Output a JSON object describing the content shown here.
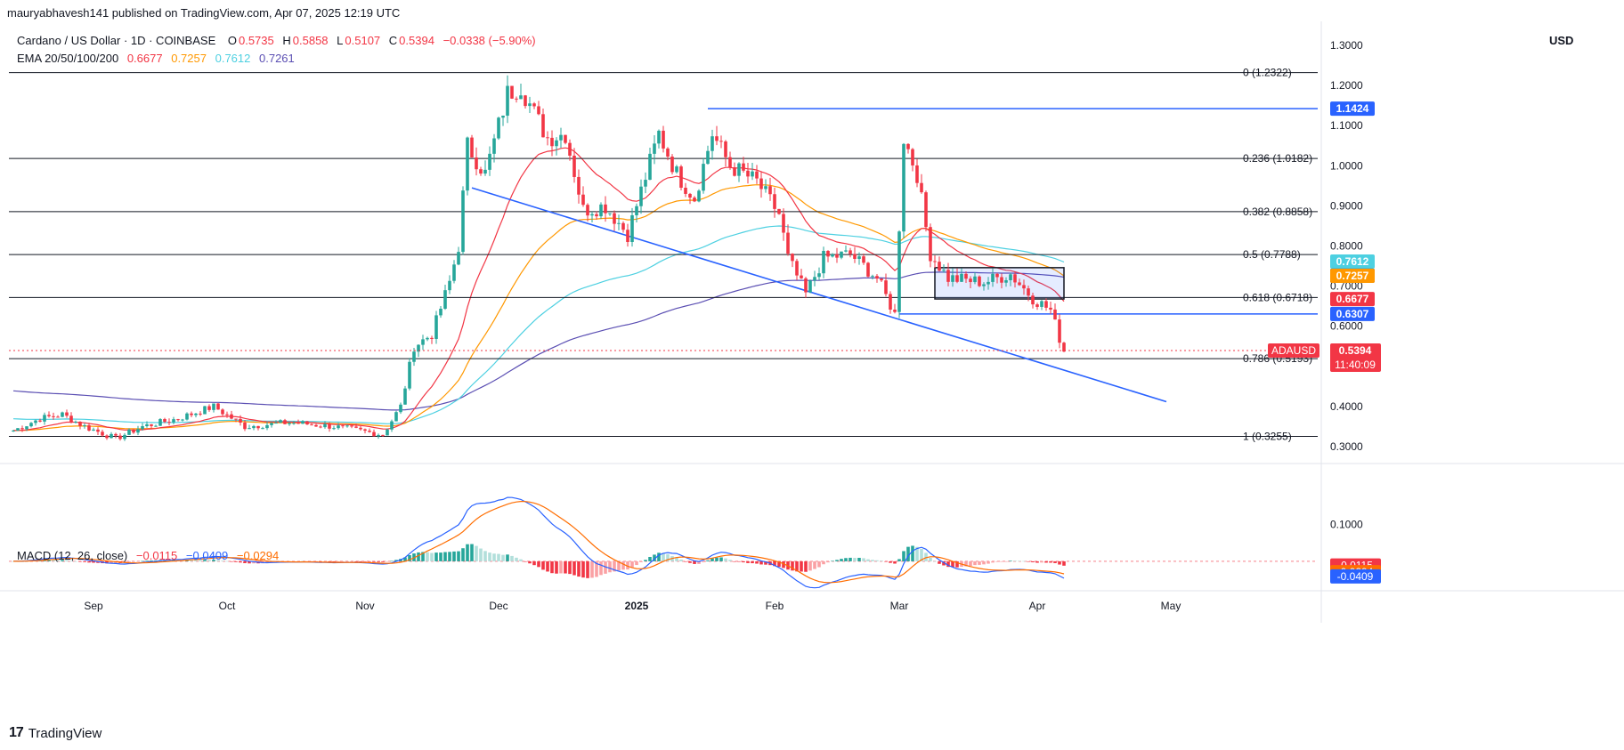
{
  "header": {
    "published": "mauryabhavesh141 published on TradingView.com, Apr 07, 2025 12:19 UTC",
    "symbol": "Cardano / US Dollar · 1D · COINBASE",
    "o_label": "O",
    "o_value": "0.5735",
    "h_label": "H",
    "h_value": "0.5858",
    "l_label": "L",
    "l_value": "0.5107",
    "c_label": "C",
    "c_value": "0.5394",
    "change": "−0.0338 (−5.90%)",
    "ema_label": "EMA 20/50/100/200",
    "ema_values": [
      "0.6677",
      "0.7257",
      "0.7612",
      "0.7261"
    ],
    "macd_label": "MACD (12, 26, close)",
    "macd_values": [
      "−0.0115",
      "−0.0409",
      "−0.0294"
    ],
    "currency": "USD",
    "brand": "TradingView"
  },
  "colors": {
    "up": "#26a69a",
    "down": "#f23645",
    "ema20": "#f23645",
    "ema50": "#ff9800",
    "ema100": "#4dd0e1",
    "ema200": "#5b4fb3",
    "trendline": "#2962ff",
    "fib": "#131722",
    "macd_line": "#2962ff",
    "signal_line": "#ff6d00"
  },
  "chart_data": {
    "type": "candlestick",
    "title": "Cardano / US Dollar · 1D · COINBASE",
    "ylim": [
      0.26,
      1.36
    ],
    "y_ticks": [
      "1.3000",
      "1.2000",
      "1.1000",
      "1.0000",
      "0.9000",
      "0.8000",
      "0.7000",
      "0.6000",
      "0.4000",
      "0.3000"
    ],
    "x_ticks": [
      "Sep",
      "Oct",
      "Nov",
      "Dec",
      "2025",
      "Feb",
      "Mar",
      "Apr",
      "May"
    ],
    "fib_levels": [
      {
        "ratio": "0",
        "price": 1.2322,
        "label": "0 (1.2322)"
      },
      {
        "ratio": "0.236",
        "price": 1.0182,
        "label": "0.236 (1.0182)"
      },
      {
        "ratio": "0.382",
        "price": 0.8858,
        "label": "0.382 (0.8858)"
      },
      {
        "ratio": "0.5",
        "price": 0.7788,
        "label": "0.5 (0.7788)"
      },
      {
        "ratio": "0.618",
        "price": 0.6718,
        "label": "0.618 (0.6718)"
      },
      {
        "ratio": "0.786",
        "price": 0.5193,
        "label": "0.786 (0.5193)"
      },
      {
        "ratio": "1",
        "price": 0.3255,
        "label": "1 (0.3255)"
      }
    ],
    "horizontal_lines": [
      {
        "price": 1.1424,
        "label": "1.1424",
        "from": "2025-01-17"
      },
      {
        "price": 0.6307,
        "label": "0.6307",
        "from": "2025-03-01"
      }
    ],
    "trendline": {
      "from": {
        "date": "2024-11-25",
        "price": 0.945
      },
      "to": {
        "date": "2025-04-30",
        "price": 0.412
      }
    },
    "range_box": {
      "from": "2025-03-09",
      "to": "2025-04-07",
      "top": 0.746,
      "bottom": 0.668
    },
    "price_tags": [
      {
        "text": "0.7612",
        "color": "#4dd0e1",
        "price": 0.7612
      },
      {
        "text": "0.7261",
        "color": "#1a1a8c",
        "price": 0.7261
      },
      {
        "text": "0.7257",
        "color": "#ff9800",
        "price": 0.7257
      },
      {
        "text": "0.6677",
        "color": "#f23645",
        "price": 0.6677
      },
      {
        "text": "0.6307",
        "color": "#2962ff",
        "price": 0.6307
      },
      {
        "text": "1.1424",
        "color": "#2962ff",
        "price": 1.1424
      }
    ],
    "last_tag": {
      "symbol": "ADAUSD",
      "price_text": "0.5394",
      "countdown": "11:40:09",
      "price": 0.5394
    },
    "price_path": [
      [
        "2024-08-14",
        0.34
      ],
      [
        "2024-08-20",
        0.37
      ],
      [
        "2024-08-25",
        0.38
      ],
      [
        "2024-08-30",
        0.35
      ],
      [
        "2024-09-06",
        0.32
      ],
      [
        "2024-09-12",
        0.35
      ],
      [
        "2024-09-20",
        0.37
      ],
      [
        "2024-09-28",
        0.4
      ],
      [
        "2024-10-05",
        0.35
      ],
      [
        "2024-10-15",
        0.36
      ],
      [
        "2024-10-25",
        0.35
      ],
      [
        "2024-11-05",
        0.33
      ],
      [
        "2024-11-09",
        0.4
      ],
      [
        "2024-11-12",
        0.55
      ],
      [
        "2024-11-16",
        0.58
      ],
      [
        "2024-11-20",
        0.71
      ],
      [
        "2024-11-22",
        0.8
      ],
      [
        "2024-11-24",
        1.05
      ],
      [
        "2024-11-28",
        0.98
      ],
      [
        "2024-12-03",
        1.18
      ],
      [
        "2024-12-06",
        1.2
      ],
      [
        "2024-12-09",
        1.13
      ],
      [
        "2024-12-12",
        1.07
      ],
      [
        "2024-12-16",
        1.08
      ],
      [
        "2024-12-20",
        0.89
      ],
      [
        "2024-12-25",
        0.9
      ],
      [
        "2024-12-30",
        0.83
      ],
      [
        "2025-01-06",
        1.08
      ],
      [
        "2025-01-10",
        0.98
      ],
      [
        "2025-01-14",
        0.92
      ],
      [
        "2025-01-18",
        1.08
      ],
      [
        "2025-01-22",
        1.0
      ],
      [
        "2025-01-28",
        0.96
      ],
      [
        "2025-02-02",
        0.88
      ],
      [
        "2025-02-04",
        0.77
      ],
      [
        "2025-02-08",
        0.68
      ],
      [
        "2025-02-12",
        0.77
      ],
      [
        "2025-02-18",
        0.78
      ],
      [
        "2025-02-24",
        0.72
      ],
      [
        "2025-02-28",
        0.63
      ],
      [
        "2025-03-02",
        1.07
      ],
      [
        "2025-03-05",
        0.98
      ],
      [
        "2025-03-08",
        0.78
      ],
      [
        "2025-03-12",
        0.72
      ],
      [
        "2025-03-20",
        0.71
      ],
      [
        "2025-03-26",
        0.73
      ],
      [
        "2025-03-31",
        0.67
      ],
      [
        "2025-04-04",
        0.64
      ],
      [
        "2025-04-06",
        0.57
      ],
      [
        "2025-04-07",
        0.5394
      ]
    ],
    "macd": {
      "ylim": [
        -0.075,
        0.2
      ],
      "y_ticks": [
        "0.1000"
      ],
      "tags": [
        {
          "text": "-0.0115",
          "color": "#f23645",
          "value": -0.0115
        },
        {
          "text": "-0.0294",
          "color": "#ff6d00",
          "value": -0.0294
        },
        {
          "text": "-0.0409",
          "color": "#2962ff",
          "value": -0.0409
        }
      ]
    }
  }
}
